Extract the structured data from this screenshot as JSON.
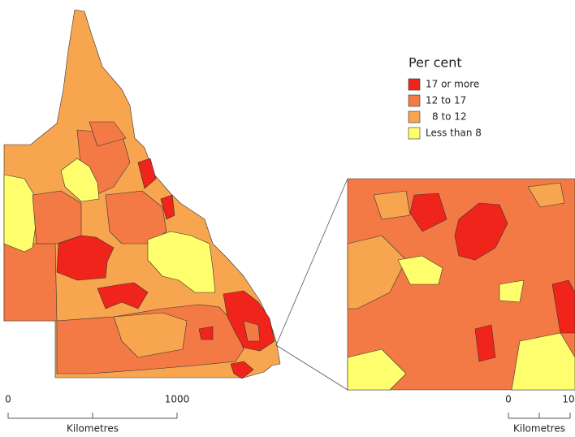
{
  "legend": {
    "title": "Per cent",
    "items": [
      {
        "label": "17 or more",
        "color": "#f0241b"
      },
      {
        "label": "12 to 17",
        "color": "#f47a45"
      },
      {
        "label": "8 to 12",
        "color": "#f7a54f"
      },
      {
        "label": "Less than 8",
        "color": "#ffff6e"
      }
    ]
  },
  "scale_bars": [
    {
      "labels": [
        "0",
        "1000"
      ],
      "unit": "Kilometres"
    },
    {
      "labels": [
        "0",
        "10"
      ],
      "unit": "Kilometres"
    }
  ]
}
